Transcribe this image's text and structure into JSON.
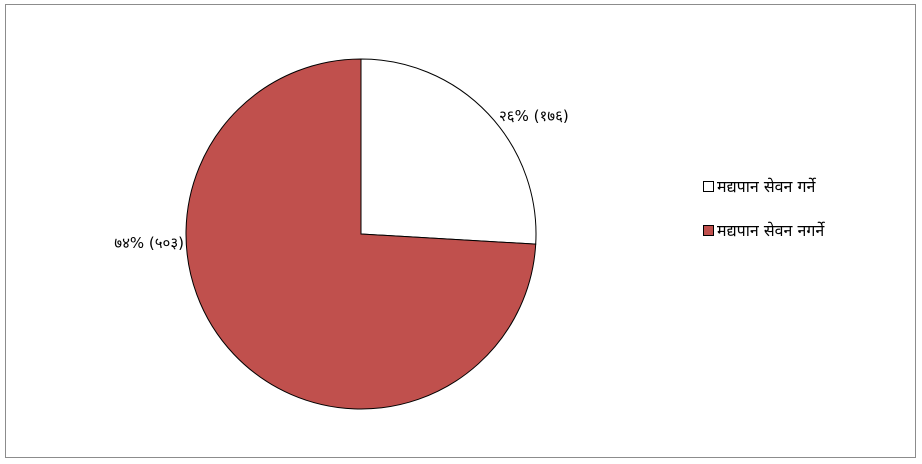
{
  "chart_data": {
    "type": "pie",
    "slices": [
      {
        "name": "मद्यपान सेवन गर्ने",
        "percent": 26,
        "count": 176,
        "label": "२६% (१७६)",
        "color": "#ffffff"
      },
      {
        "name": "मद्यपान सेवन नगर्ने",
        "percent": 74,
        "count": 503,
        "label": "७४% (५०३)",
        "color": "#c0504d"
      }
    ],
    "legend_position": "right"
  }
}
